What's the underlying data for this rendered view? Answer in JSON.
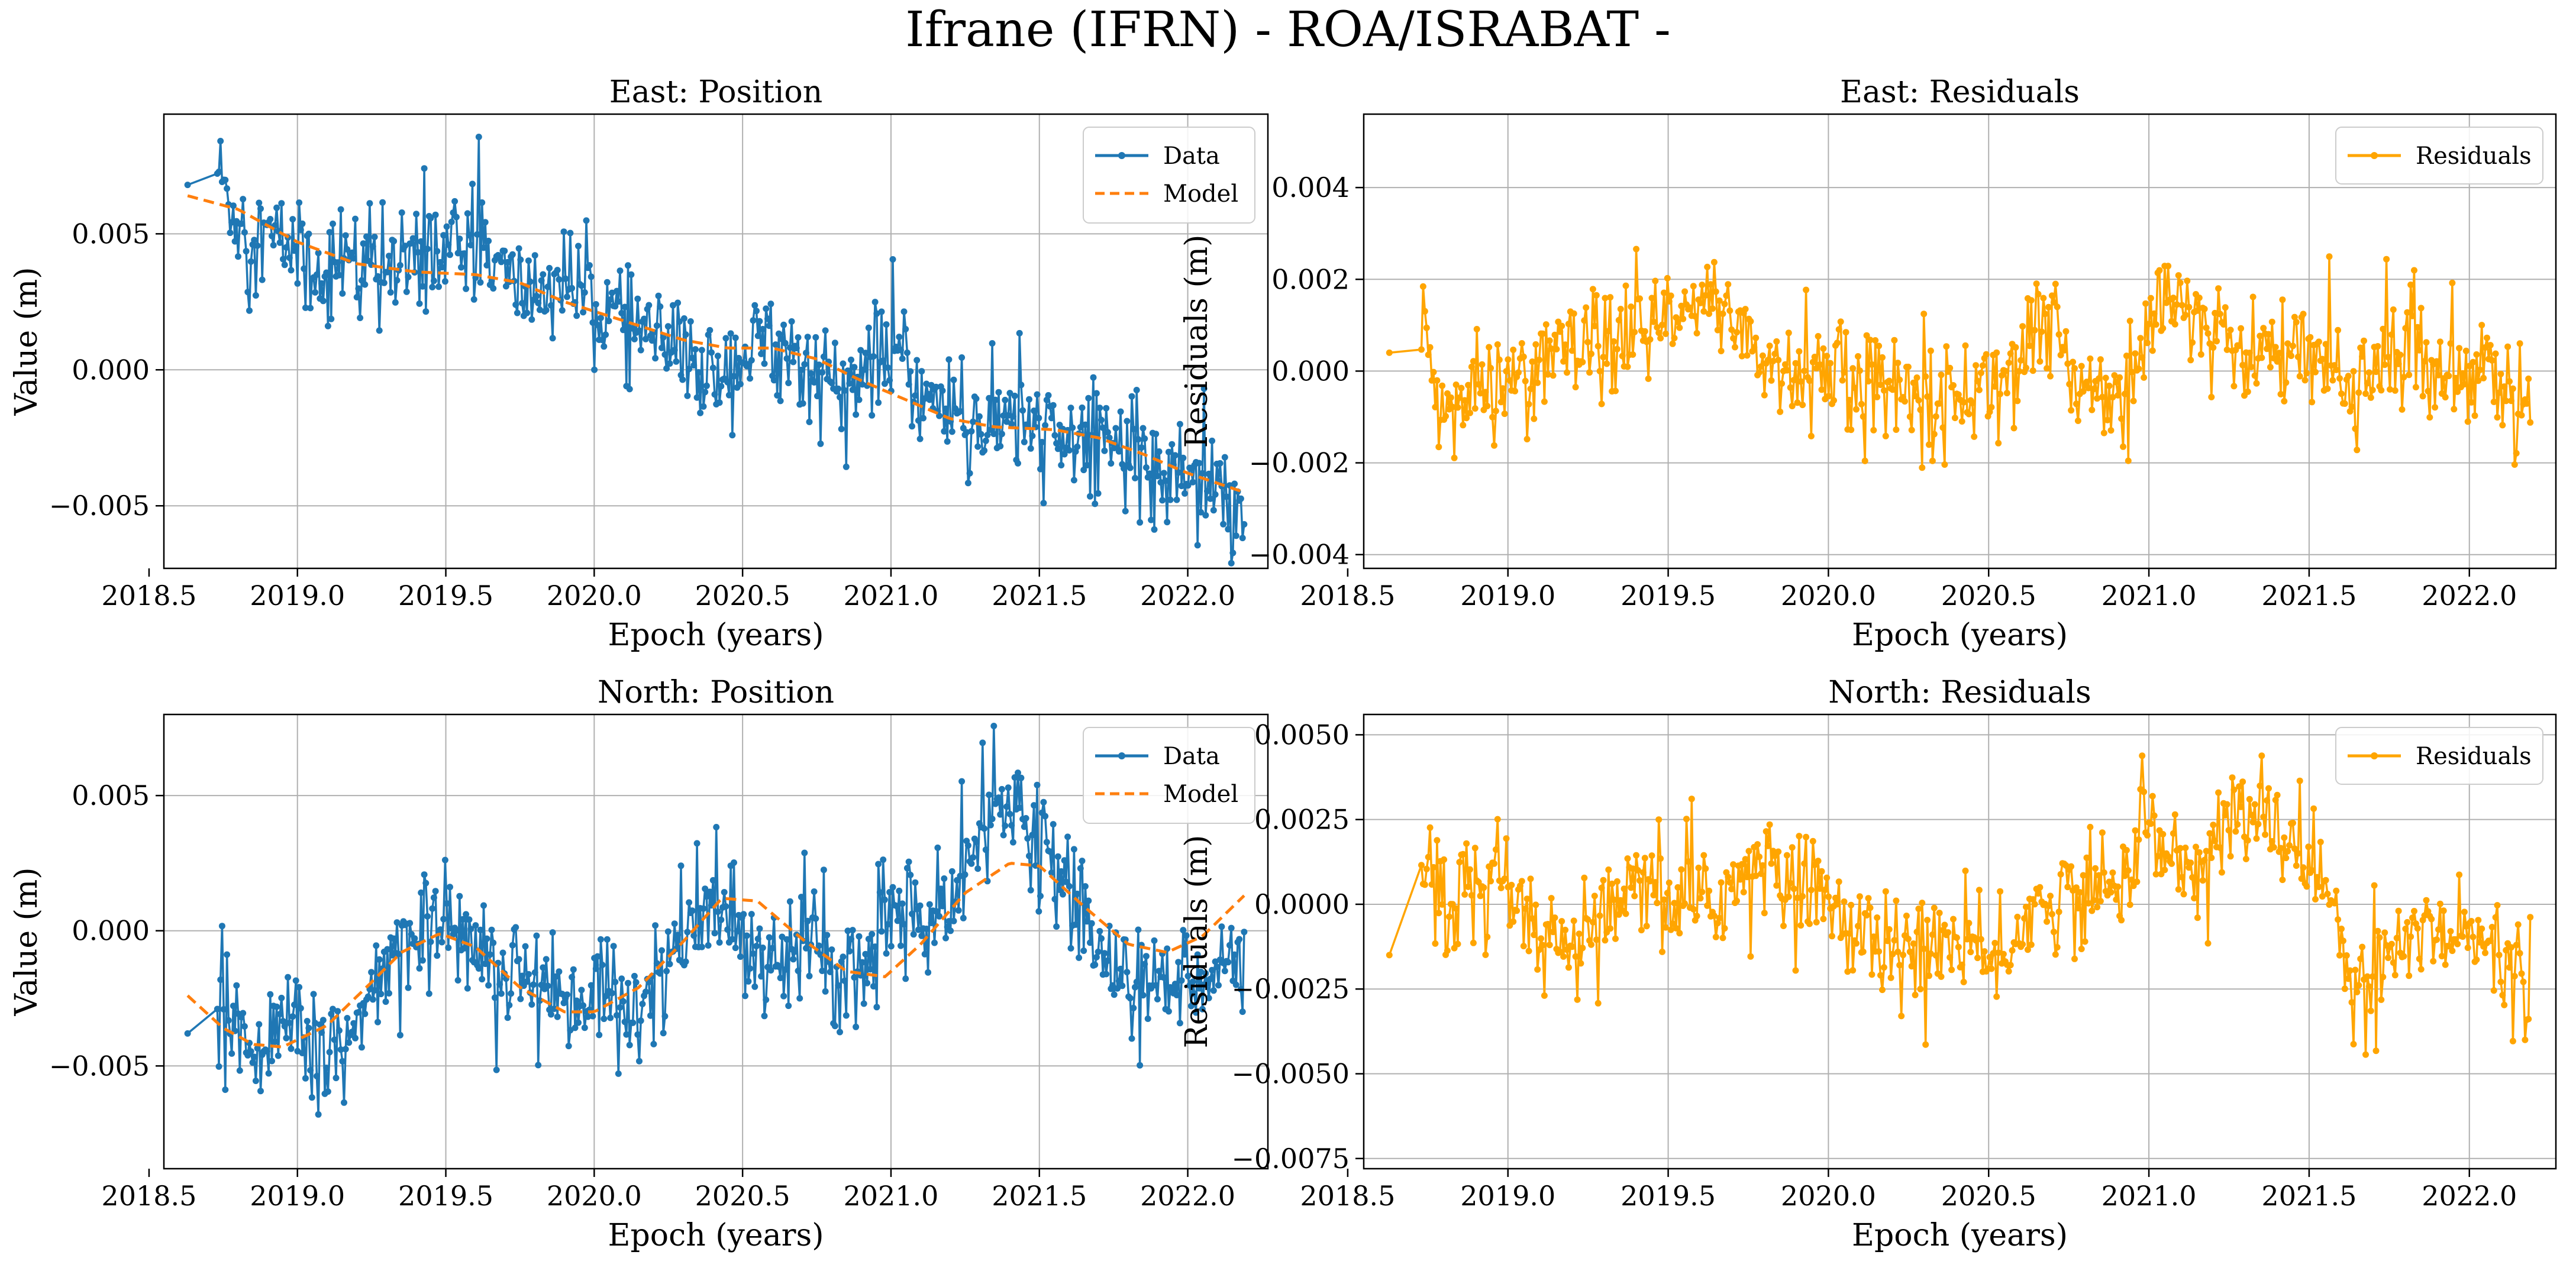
{
  "figure_title": "Ifrane (IFRN) - ROA/ISRABAT -",
  "colors": {
    "data": "#1f77b4",
    "model": "#ff7f0e",
    "residuals": "#ffa500",
    "grid": "#b0b0b0",
    "axis": "#000000"
  },
  "chart_data": [
    {
      "id": "east-position",
      "type": "line",
      "title": "East: Position",
      "xlabel": "Epoch (years)",
      "ylabel": "Value (m)",
      "xlim": [
        2018.55,
        2022.27
      ],
      "ylim": [
        -0.0073,
        0.0094
      ],
      "xticks": [
        2018.5,
        2019.0,
        2019.5,
        2020.0,
        2020.5,
        2021.0,
        2021.5,
        2022.0
      ],
      "xtick_labels": [
        "2018.5",
        "2019.0",
        "2019.5",
        "2020.0",
        "2020.5",
        "2021.0",
        "2021.5",
        "2022.0"
      ],
      "yticks": [
        0.005,
        0.0,
        -0.005
      ],
      "ytick_labels": [
        "0.005",
        "0.000",
        "−0.005"
      ],
      "grid": true,
      "legend_position": "top-right",
      "x_range": [
        2018.63,
        2022.19
      ],
      "series": [
        {
          "name": "Data",
          "style": "line-markers",
          "color": "#1f77b4",
          "x": [
            2018.63,
            2018.73,
            2018.78,
            2018.85,
            2018.92,
            2018.98,
            2019.05,
            2019.15,
            2019.25,
            2019.35,
            2019.45,
            2019.55,
            2019.62,
            2019.7,
            2019.8,
            2019.9,
            2020.0,
            2020.1,
            2020.2,
            2020.3,
            2020.4,
            2020.5,
            2020.6,
            2020.7,
            2020.8,
            2020.9,
            2021.0,
            2021.1,
            2021.2,
            2021.3,
            2021.4,
            2021.5,
            2021.6,
            2021.7,
            2021.8,
            2021.9,
            2022.0,
            2022.1,
            2022.19
          ],
          "values": [
            0.0068,
            0.0075,
            0.0058,
            0.0052,
            0.0048,
            0.0046,
            0.0035,
            0.0042,
            0.0038,
            0.0036,
            0.0043,
            0.0045,
            0.0048,
            0.0033,
            0.0028,
            0.0034,
            0.0025,
            0.0018,
            0.0012,
            0.0004,
            -0.0002,
            0.0005,
            0.0012,
            0.0002,
            -0.0006,
            -0.0004,
            0.0009,
            -0.0009,
            -0.0014,
            -0.0022,
            -0.0018,
            -0.0022,
            -0.0028,
            -0.0021,
            -0.0031,
            -0.0036,
            -0.0037,
            -0.0041,
            -0.0051
          ]
        },
        {
          "name": "Model",
          "style": "dashed",
          "color": "#ff7f0e",
          "x": [
            2018.63,
            2018.8,
            2018.9,
            2019.0,
            2019.2,
            2019.4,
            2019.6,
            2019.75,
            2019.9,
            2020.1,
            2020.3,
            2020.45,
            2020.6,
            2020.75,
            2020.9,
            2021.05,
            2021.2,
            2021.35,
            2021.55,
            2021.7,
            2021.85,
            2022.0,
            2022.19
          ],
          "values": [
            0.0064,
            0.0059,
            0.0053,
            0.0047,
            0.0039,
            0.0036,
            0.0035,
            0.0032,
            0.0025,
            0.0018,
            0.0011,
            0.0008,
            0.0008,
            0.0004,
            -0.0004,
            -0.0011,
            -0.0018,
            -0.0021,
            -0.0022,
            -0.0025,
            -0.0031,
            -0.0038,
            -0.0045
          ]
        }
      ]
    },
    {
      "id": "east-residuals",
      "type": "line",
      "title": "East: Residuals",
      "xlabel": "Epoch (years)",
      "ylabel": "Residuals (m)",
      "xlim": [
        2018.55,
        2022.27
      ],
      "ylim": [
        -0.0043,
        0.0056
      ],
      "xticks": [
        2018.5,
        2019.0,
        2019.5,
        2020.0,
        2020.5,
        2021.0,
        2021.5,
        2022.0
      ],
      "xtick_labels": [
        "2018.5",
        "2019.0",
        "2019.5",
        "2020.0",
        "2020.5",
        "2021.0",
        "2021.5",
        "2022.0"
      ],
      "yticks": [
        0.004,
        0.002,
        0.0,
        -0.002,
        -0.004
      ],
      "ytick_labels": [
        "0.004",
        "0.002",
        "0.000",
        "−0.002",
        "−0.004"
      ],
      "grid": true,
      "legend_position": "top-right",
      "x_range": [
        2018.63,
        2022.19
      ],
      "series": [
        {
          "name": "Residuals",
          "style": "line-markers",
          "color": "#ffa500",
          "x": [
            2018.63,
            2018.73,
            2018.78,
            2018.85,
            2018.95,
            2019.05,
            2019.15,
            2019.25,
            2019.35,
            2019.45,
            2019.55,
            2019.62,
            2019.7,
            2019.8,
            2019.9,
            2020.0,
            2020.1,
            2020.2,
            2020.3,
            2020.4,
            2020.5,
            2020.6,
            2020.7,
            2020.8,
            2020.9,
            2021.0,
            2021.05,
            2021.15,
            2021.25,
            2021.35,
            2021.45,
            2021.55,
            2021.65,
            2021.75,
            2021.85,
            2021.95,
            2022.05,
            2022.19
          ],
          "values": [
            0.0004,
            0.0015,
            -0.0007,
            -0.0008,
            -0.0003,
            0.0,
            0.0004,
            0.0003,
            0.0006,
            0.0009,
            0.0011,
            0.0015,
            0.0013,
            0.0002,
            -0.0001,
            0.0001,
            -0.0004,
            -0.0002,
            -0.0008,
            -0.0005,
            -0.0003,
            0.0004,
            0.0007,
            -0.0003,
            -0.0004,
            0.0007,
            0.0016,
            0.0009,
            0.0006,
            0.0004,
            0.0003,
            0.0,
            -0.0004,
            0.0005,
            0.0002,
            0.0,
            0.0001,
            -0.0008
          ]
        }
      ]
    },
    {
      "id": "north-position",
      "type": "line",
      "title": "North: Position",
      "xlabel": "Epoch (years)",
      "ylabel": "Value (m)",
      "xlim": [
        2018.55,
        2022.27
      ],
      "ylim": [
        -0.0088,
        0.008
      ],
      "xticks": [
        2018.5,
        2019.0,
        2019.5,
        2020.0,
        2020.5,
        2021.0,
        2021.5,
        2022.0
      ],
      "xtick_labels": [
        "2018.5",
        "2019.0",
        "2019.5",
        "2020.0",
        "2020.5",
        "2021.0",
        "2021.5",
        "2022.0"
      ],
      "yticks": [
        0.005,
        0.0,
        -0.005
      ],
      "ytick_labels": [
        "0.005",
        "0.000",
        "−0.005"
      ],
      "grid": true,
      "legend_position": "top-right",
      "x_range": [
        2018.63,
        2022.19
      ],
      "series": [
        {
          "name": "Data",
          "style": "line-markers",
          "color": "#1f77b4",
          "x": [
            2018.63,
            2018.73,
            2018.8,
            2018.9,
            2019.0,
            2019.1,
            2019.2,
            2019.3,
            2019.4,
            2019.5,
            2019.6,
            2019.7,
            2019.8,
            2019.9,
            2020.0,
            2020.1,
            2020.2,
            2020.3,
            2020.4,
            2020.5,
            2020.6,
            2020.7,
            2020.8,
            2020.9,
            2021.0,
            2021.1,
            2021.2,
            2021.3,
            2021.4,
            2021.5,
            2021.6,
            2021.7,
            2021.8,
            2021.9,
            2022.0,
            2022.1,
            2022.19
          ],
          "values": [
            -0.0038,
            -0.0028,
            -0.0036,
            -0.0042,
            -0.0036,
            -0.0047,
            -0.0035,
            -0.0018,
            0.0005,
            0.0002,
            -0.0008,
            -0.0012,
            -0.0015,
            -0.0022,
            -0.0026,
            -0.0032,
            -0.0017,
            -0.0006,
            0.0009,
            -0.0002,
            -0.0006,
            -0.0004,
            -0.0012,
            -0.0016,
            0.0008,
            0.0005,
            0.0002,
            0.0038,
            0.0045,
            0.0036,
            0.0016,
            -0.0008,
            -0.0014,
            -0.0021,
            -0.0016,
            -0.0012,
            -0.0014
          ]
        },
        {
          "name": "Model",
          "style": "dashed",
          "color": "#ff7f0e",
          "x": [
            2018.63,
            2018.75,
            2018.85,
            2018.95,
            2019.1,
            2019.25,
            2019.35,
            2019.48,
            2019.6,
            2019.75,
            2019.9,
            2020.0,
            2020.15,
            2020.3,
            2020.43,
            2020.55,
            2020.7,
            2020.85,
            2020.98,
            2021.1,
            2021.25,
            2021.4,
            2021.5,
            2021.65,
            2021.8,
            2021.93,
            2022.05,
            2022.19
          ],
          "values": [
            -0.0024,
            -0.0036,
            -0.0042,
            -0.0043,
            -0.0035,
            -0.0019,
            -0.0008,
            -0.0001,
            -0.0006,
            -0.0021,
            -0.003,
            -0.003,
            -0.0021,
            -0.0004,
            0.0012,
            0.0011,
            -0.0003,
            -0.0015,
            -0.0017,
            -0.0005,
            0.0014,
            0.0025,
            0.0024,
            0.0009,
            -0.0005,
            -0.0008,
            -0.0002,
            0.0013
          ]
        }
      ]
    },
    {
      "id": "north-residuals",
      "type": "line",
      "title": "North: Residuals",
      "xlabel": "Epoch (years)",
      "ylabel": "Residuals (m)",
      "xlim": [
        2018.55,
        2022.27
      ],
      "ylim": [
        -0.0078,
        0.0056
      ],
      "xticks": [
        2018.5,
        2019.0,
        2019.5,
        2020.0,
        2020.5,
        2021.0,
        2021.5,
        2022.0
      ],
      "xtick_labels": [
        "2018.5",
        "2019.0",
        "2019.5",
        "2020.0",
        "2020.5",
        "2021.0",
        "2021.5",
        "2022.0"
      ],
      "yticks": [
        0.005,
        0.0025,
        0.0,
        -0.0025,
        -0.005,
        -0.0075
      ],
      "ytick_labels": [
        "0.0050",
        "0.0025",
        "0.0000",
        "−0.0025",
        "−0.0050",
        "−0.0075"
      ],
      "grid": true,
      "legend_position": "top-right",
      "x_range": [
        2018.63,
        2022.19
      ],
      "series": [
        {
          "name": "Residuals",
          "style": "line-markers",
          "color": "#ffa500",
          "x": [
            2018.63,
            2018.73,
            2018.8,
            2018.9,
            2019.0,
            2019.1,
            2019.2,
            2019.3,
            2019.4,
            2019.5,
            2019.6,
            2019.7,
            2019.8,
            2019.9,
            2020.0,
            2020.1,
            2020.2,
            2020.3,
            2020.4,
            2020.5,
            2020.6,
            2020.7,
            2020.8,
            2020.9,
            2021.0,
            2021.05,
            2021.15,
            2021.25,
            2021.35,
            2021.45,
            2021.55,
            2021.65,
            2021.75,
            2021.85,
            2021.95,
            2022.05,
            2022.19
          ],
          "values": [
            -0.0015,
            0.0008,
            0.0004,
            0.0002,
            0.0005,
            -0.0013,
            -0.0015,
            -0.0005,
            0.0004,
            0.0001,
            -0.0001,
            0.0006,
            0.0011,
            0.0005,
            0.0004,
            -0.0011,
            -0.0012,
            -0.0012,
            -0.0009,
            -0.0019,
            -0.0007,
            0.0002,
            0.0003,
            0.0004,
            0.0028,
            0.0012,
            0.0009,
            0.0026,
            0.0025,
            0.0019,
            0.0006,
            -0.0024,
            -0.0017,
            -0.0005,
            -0.0008,
            -0.0011,
            -0.0029
          ]
        }
      ]
    }
  ]
}
